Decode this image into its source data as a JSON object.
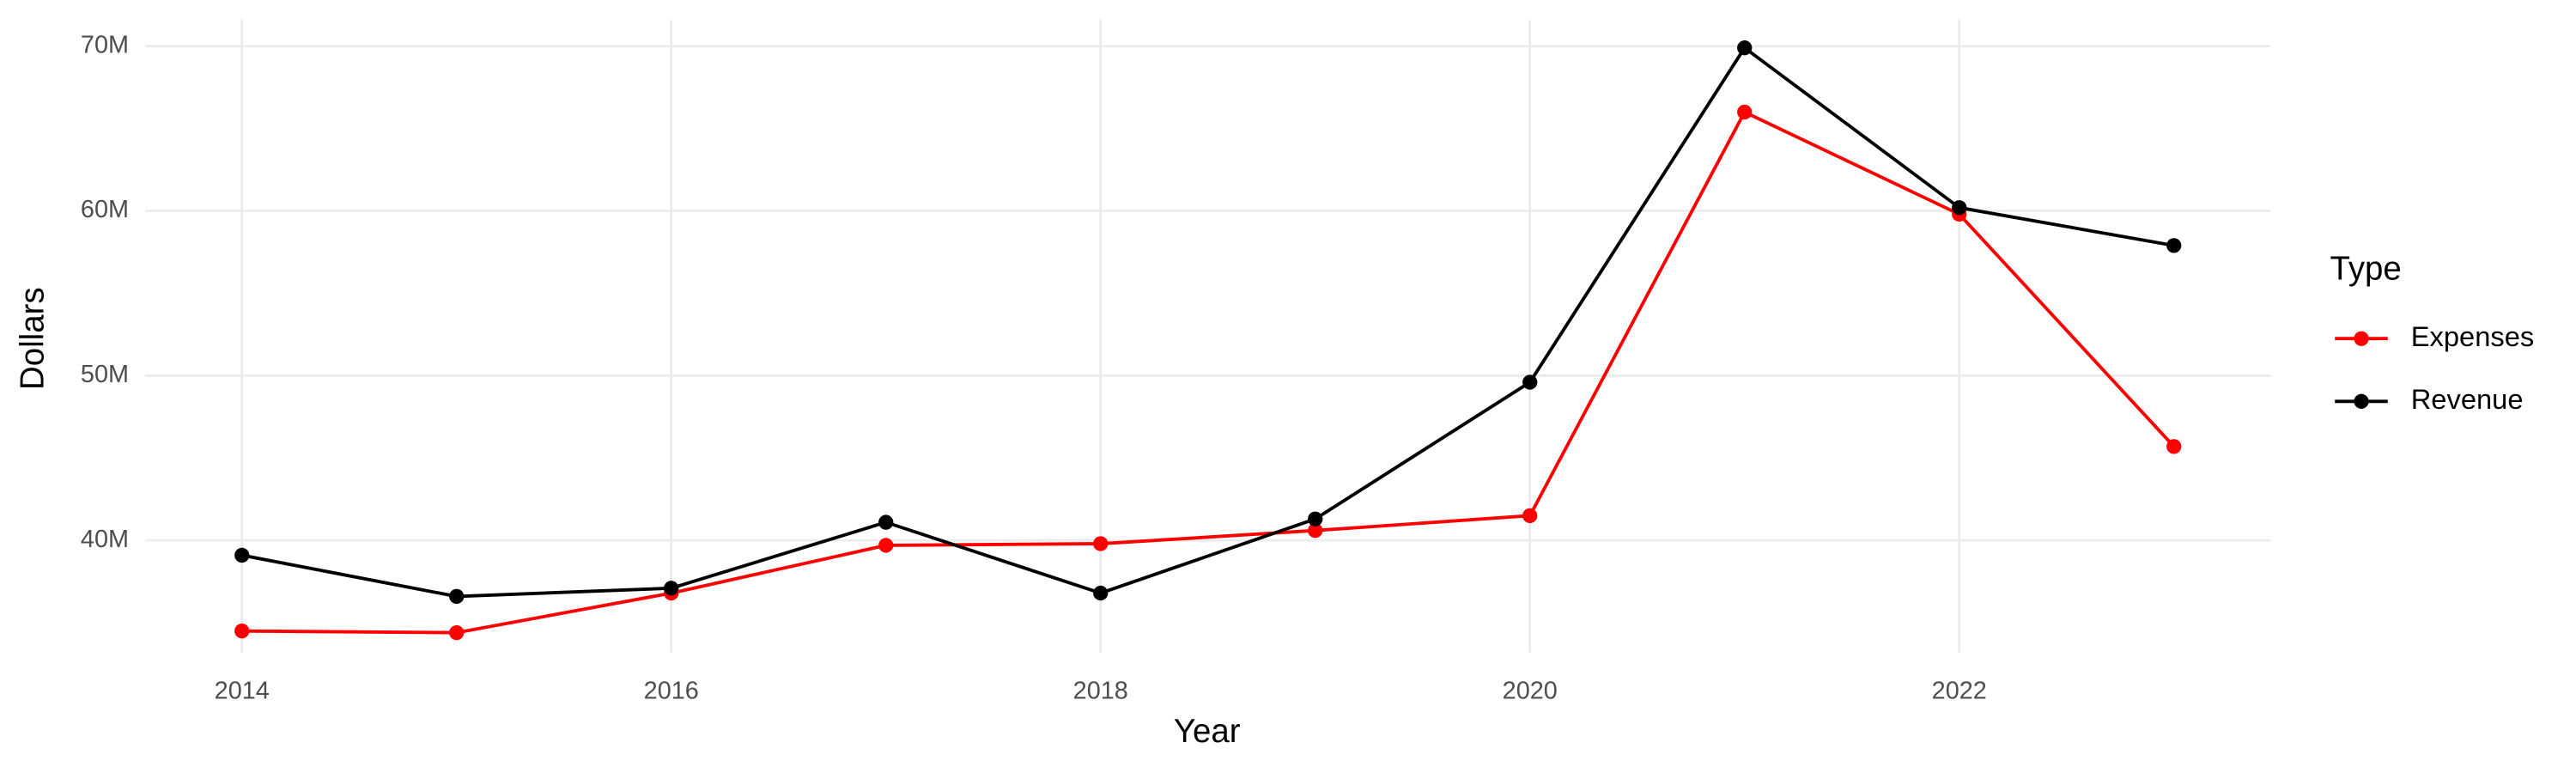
{
  "chart_data": {
    "type": "line",
    "x_label": "Year",
    "y_label": "Dollars",
    "x": [
      2014,
      2015,
      2016,
      2017,
      2018,
      2019,
      2020,
      2021,
      2022,
      2023
    ],
    "series": [
      {
        "name": "Expenses",
        "color": "#ff0000",
        "values": [
          34500000,
          34400000,
          36800000,
          39700000,
          39800000,
          40600000,
          41500000,
          66000000,
          59800000,
          45700000
        ]
      },
      {
        "name": "Revenue",
        "color": "#000000",
        "values": [
          39100000,
          36600000,
          37100000,
          41100000,
          36800000,
          41300000,
          49600000,
          69900000,
          60200000,
          57900000
        ]
      }
    ],
    "xlim": [
      2013.55,
      2023.45
    ],
    "xticks": [
      2014,
      2016,
      2018,
      2020,
      2022
    ],
    "ylim": [
      33200000,
      71600000
    ],
    "yticks": [
      {
        "value": 40000000,
        "label": "40M"
      },
      {
        "value": 50000000,
        "label": "50M"
      },
      {
        "value": 60000000,
        "label": "60M"
      },
      {
        "value": 70000000,
        "label": "70M"
      }
    ],
    "grid": true,
    "legend_title": "Type",
    "legend_position": "right"
  }
}
